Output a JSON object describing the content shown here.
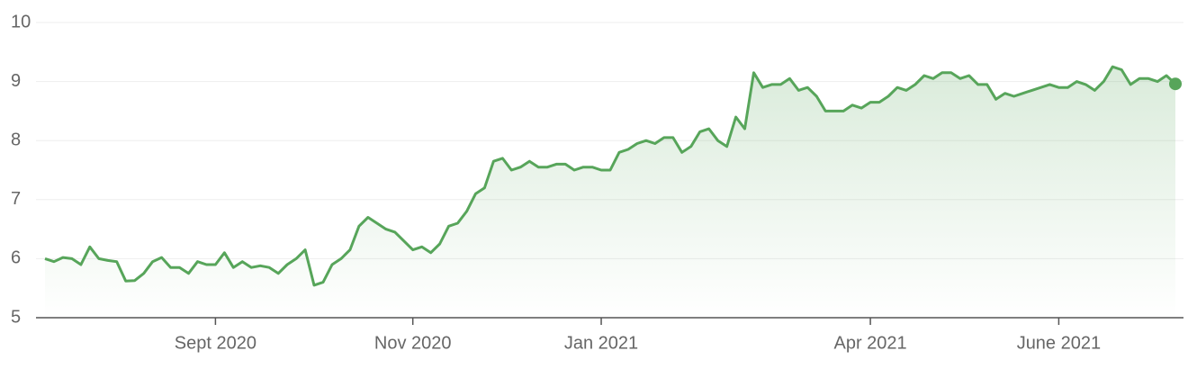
{
  "chart_data": {
    "type": "line",
    "categories": [
      null,
      null,
      null,
      null,
      null,
      null,
      null,
      null,
      null,
      null,
      null,
      null,
      null,
      null,
      null,
      null,
      null,
      null,
      null,
      "Sept 2020",
      null,
      null,
      null,
      null,
      null,
      null,
      null,
      null,
      null,
      null,
      null,
      null,
      null,
      null,
      null,
      null,
      null,
      null,
      null,
      null,
      null,
      "Nov 2020",
      null,
      null,
      null,
      null,
      null,
      null,
      null,
      null,
      null,
      null,
      null,
      null,
      null,
      null,
      null,
      null,
      null,
      null,
      null,
      null,
      "Jan 2021",
      null,
      null,
      null,
      null,
      null,
      null,
      null,
      null,
      null,
      null,
      null,
      null,
      null,
      null,
      null,
      null,
      null,
      null,
      null,
      null,
      null,
      null,
      null,
      null,
      null,
      null,
      null,
      null,
      null,
      "Apr 2021",
      null,
      null,
      null,
      null,
      null,
      null,
      null,
      null,
      null,
      null,
      null,
      null,
      null,
      null,
      null,
      null,
      null,
      null,
      null,
      null,
      "June 2021",
      null,
      null,
      null,
      null,
      null,
      null,
      null,
      null,
      null,
      null,
      null,
      null,
      null
    ],
    "series": [
      {
        "color": "#57a55a",
        "values": [
          6.0,
          5.95,
          6.02,
          6.0,
          5.9,
          6.2,
          6.0,
          5.97,
          5.95,
          5.62,
          5.63,
          5.75,
          5.95,
          6.02,
          5.85,
          5.85,
          5.75,
          5.95,
          5.9,
          5.9,
          6.1,
          5.85,
          5.95,
          5.85,
          5.88,
          5.85,
          5.75,
          5.9,
          6.0,
          6.15,
          5.55,
          5.6,
          5.9,
          6.0,
          6.15,
          6.55,
          6.7,
          6.6,
          6.5,
          6.45,
          6.3,
          6.15,
          6.2,
          6.1,
          6.25,
          6.55,
          6.6,
          6.8,
          7.1,
          7.2,
          7.65,
          7.7,
          7.5,
          7.55,
          7.65,
          7.55,
          7.55,
          7.6,
          7.6,
          7.5,
          7.55,
          7.55,
          7.5,
          7.5,
          7.8,
          7.85,
          7.95,
          8.0,
          7.95,
          8.05,
          8.05,
          7.8,
          7.9,
          8.15,
          8.2,
          8.0,
          7.9,
          8.4,
          8.2,
          9.15,
          8.9,
          8.95,
          8.95,
          9.05,
          8.85,
          8.9,
          8.75,
          8.5,
          8.5,
          8.5,
          8.6,
          8.55,
          8.65,
          8.65,
          8.75,
          8.9,
          8.85,
          8.95,
          9.1,
          9.05,
          9.15,
          9.15,
          9.05,
          9.1,
          8.95,
          8.95,
          8.7,
          8.8,
          8.75,
          8.8,
          8.85,
          8.9,
          8.95,
          8.9,
          8.9,
          9.0,
          8.95,
          8.85,
          9.0,
          9.25,
          9.2,
          8.95,
          9.05,
          9.05,
          9.0,
          9.1,
          8.96
        ]
      }
    ],
    "ylim": [
      5,
      10
    ],
    "yticks": [
      5,
      6,
      7,
      8,
      9,
      10
    ],
    "grid": true
  }
}
